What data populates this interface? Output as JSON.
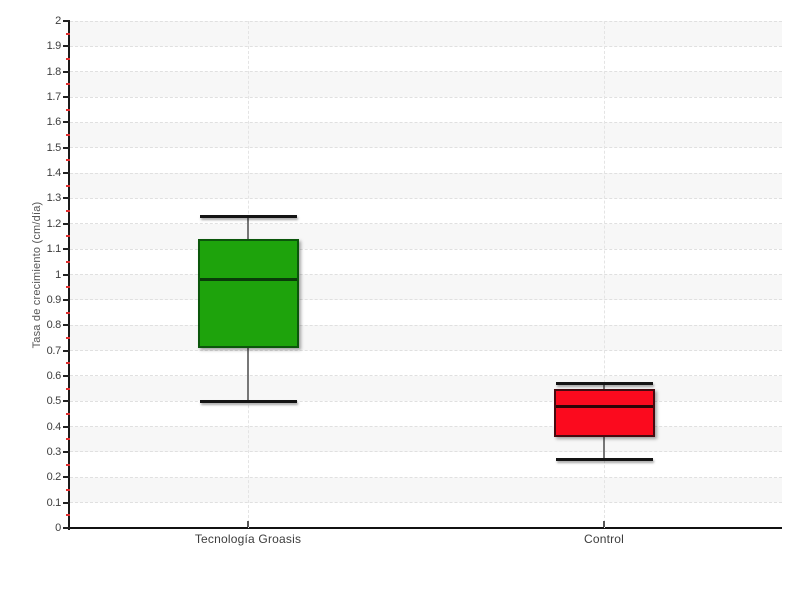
{
  "page": {
    "background_color": "#ffffff"
  },
  "chart_data": {
    "type": "boxplot",
    "title": "",
    "xlabel": "",
    "ylabel": "Tasa de crecimiento (cm/día)",
    "ylim": [
      0,
      2
    ],
    "y_major_tick_step": 0.1,
    "y_minor_tick_step": 0.05,
    "y_tick_labels": [
      "0",
      "0.1",
      "0.2",
      "0.3",
      "0.4",
      "0.5",
      "0.6",
      "0.7",
      "0.8",
      "0.9",
      "1",
      "1.1",
      "1.2",
      "1.3",
      "1.4",
      "1.5",
      "1.6",
      "1.7",
      "1.8",
      "1.9",
      "2"
    ],
    "categories": [
      "Tecnología Groasis",
      "Control"
    ],
    "legend": "none",
    "grid": {
      "horizontal_gridlines": "dashed at every 0.1",
      "vertical_gridlines": "dashed at each category center",
      "alternating_horizontal_bands": true,
      "band_color": "#f7f7f7",
      "gridline_color": "#e0e0e0",
      "minor_tick_color": "#e03030",
      "axis_color": "#111111"
    },
    "series": [
      {
        "name": "Tecnología Groasis",
        "whisker_low": 0.5,
        "q1": 0.71,
        "median": 0.98,
        "q3": 1.14,
        "whisker_high": 1.23,
        "fill_color": "#1ea30c",
        "border_color": "#0b560b",
        "median_color": "#093c09"
      },
      {
        "name": "Control",
        "whisker_low": 0.27,
        "q1": 0.36,
        "median": 0.48,
        "q3": 0.55,
        "whisker_high": 0.57,
        "fill_color": "#fb0a1e",
        "border_color": "#460a10",
        "median_color": "#2e0406"
      }
    ]
  }
}
